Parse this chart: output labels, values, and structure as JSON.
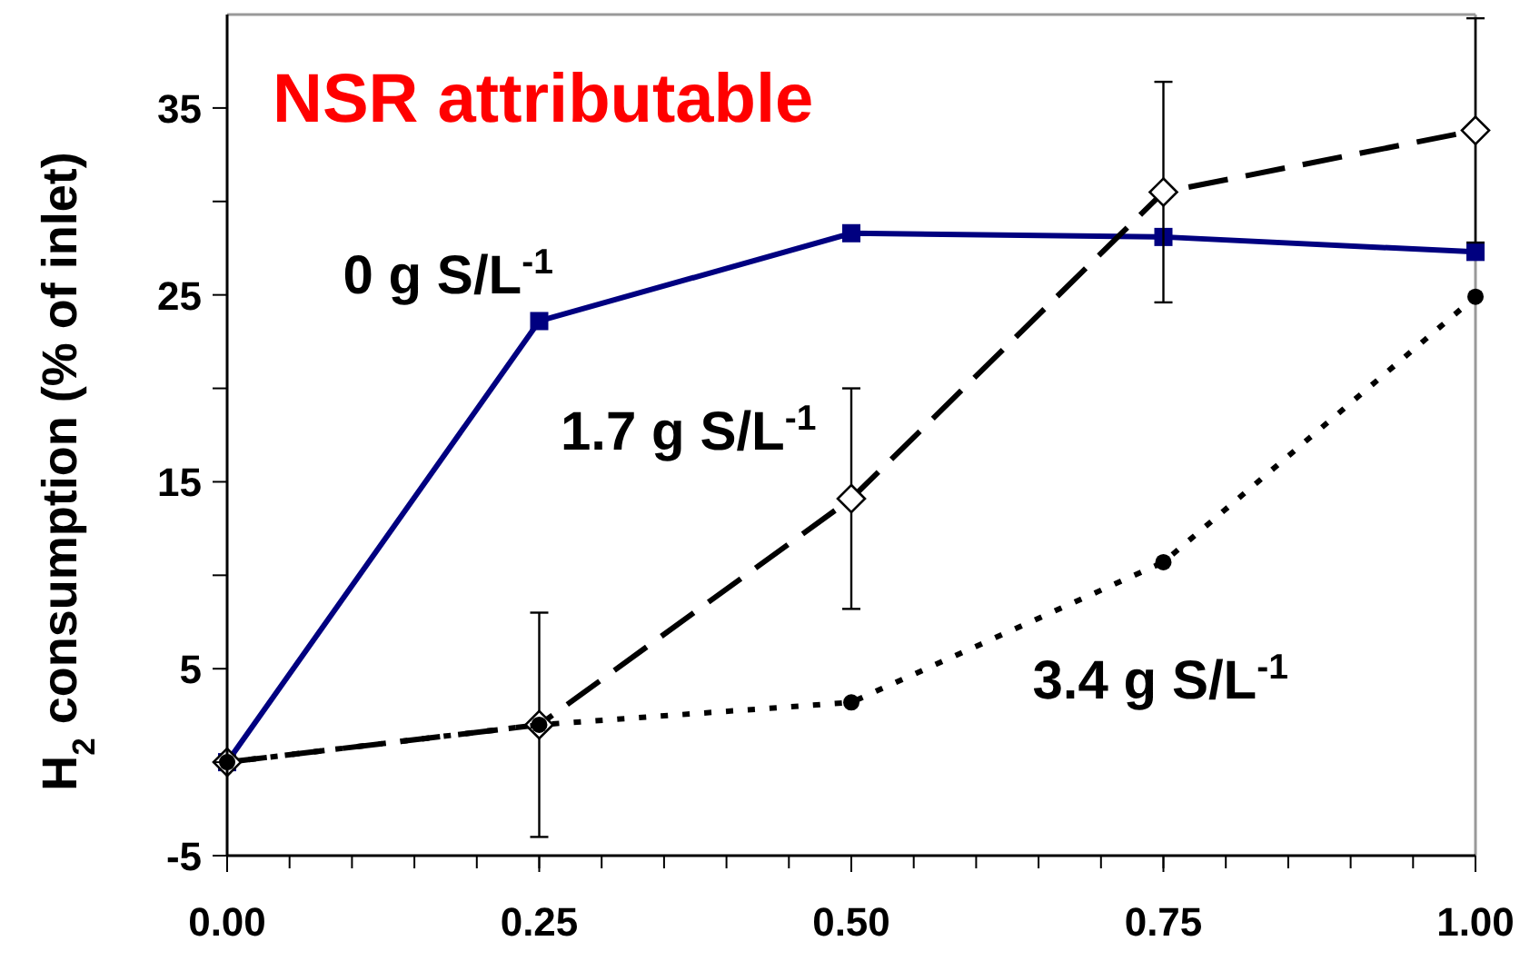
{
  "chart_data": {
    "type": "line",
    "title": "NSR attributable",
    "ylabel": "H$_{2}$ consumption (% of inlet)",
    "x": [
      0,
      0.25,
      0.5,
      0.75,
      1
    ],
    "xlim": [
      0,
      1
    ],
    "xticks": [
      {
        "value": 0,
        "label": "0.00"
      },
      {
        "value": 0.25,
        "label": "0.25"
      },
      {
        "value": 0.5,
        "label": "0.50"
      },
      {
        "value": 0.75,
        "label": "0.75"
      },
      {
        "value": 1,
        "label": "1.00"
      }
    ],
    "ylim": [
      -5,
      40
    ],
    "yticks": [
      -5,
      {
        "value": 0,
        "label": null
      },
      5,
      {
        "value": 10,
        "label": null
      },
      15,
      {
        "value": 20,
        "label": null
      },
      25,
      {
        "value": 30,
        "label": null
      },
      35
    ],
    "grid": false,
    "legend": false,
    "series": [
      {
        "name": "0 g S/L$^{-1}$",
        "color": "#000080",
        "values": [
          0,
          23.6,
          28.3,
          28.1,
          27.3
        ],
        "marker": "square",
        "line_style": "solid"
      },
      {
        "name": "1.7 g S/L$^{-1}$",
        "color": "#000000",
        "values": [
          0,
          2,
          14.1,
          30.5,
          33.8
        ],
        "errors": [
          null,
          6,
          5.9,
          5.9,
          6
        ],
        "marker": "diamond",
        "line_style": "dashed"
      },
      {
        "name": "3.4 g S/L$^{-1}$",
        "color": "#000000",
        "values": [
          0,
          2,
          3.2,
          10.7,
          24.9
        ],
        "marker": "circle",
        "line_style": "dotted"
      }
    ]
  }
}
